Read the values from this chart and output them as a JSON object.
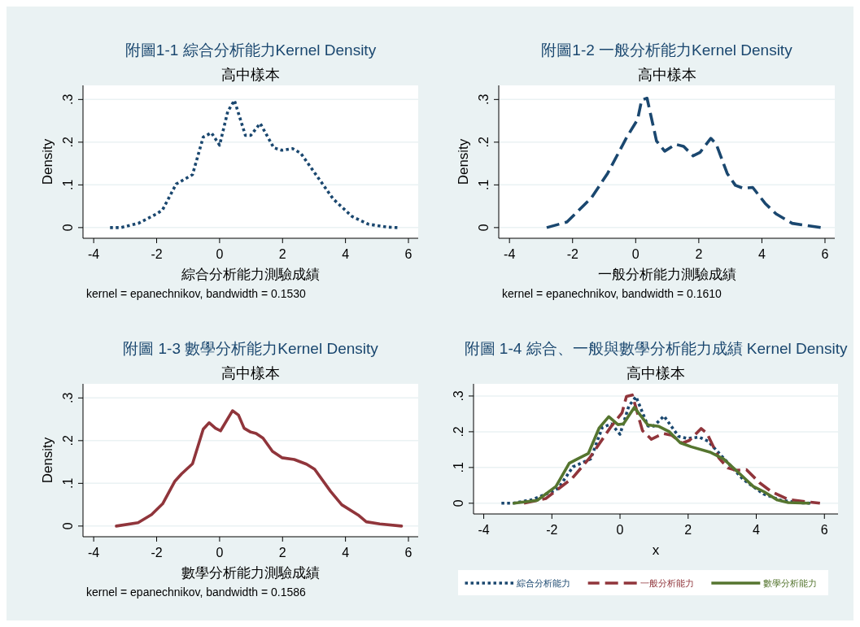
{
  "chart_data": [
    {
      "type": "line",
      "title": "附圖1-1 綜合分析能力Kernel Density",
      "subtitle": "高中樣本",
      "xlabel": "綜合分析能力測驗成績",
      "ylabel": "Density",
      "annotations": [
        "kernel = epanechnikov, bandwidth = 0.1530"
      ],
      "xlim": [
        -4.34,
        6.31
      ],
      "xticks": [
        -4,
        -2,
        0,
        2,
        4,
        6
      ],
      "ylim": [
        -0.025,
        0.333
      ],
      "yticks": [
        {
          "value": 0,
          "label": "0"
        },
        {
          "value": 0.1,
          "label": ".1"
        },
        {
          "value": 0.2,
          "label": ".2"
        },
        {
          "value": 0.3,
          "label": ".3"
        }
      ],
      "grid": "y",
      "series": [
        {
          "color": "#1a476f",
          "line_style": "dotted",
          "x": [
            -3.48,
            -3.14,
            -2.58,
            -1.98,
            -1.81,
            -1.38,
            -0.86,
            -0.52,
            -0.26,
            0,
            0.26,
            0.47,
            0.82,
            0.99,
            1.29,
            1.72,
            1.98,
            2.32,
            2.58,
            3.1,
            3.61,
            4.21,
            4.73,
            5.33,
            5.67
          ],
          "values": [
            0,
            0,
            0.01,
            0.033,
            0.042,
            0.102,
            0.124,
            0.212,
            0.222,
            0.193,
            0.272,
            0.298,
            0.216,
            0.216,
            0.244,
            0.187,
            0.181,
            0.185,
            0.174,
            0.12,
            0.067,
            0.026,
            0.008,
            0.001,
            0
          ]
        }
      ]
    },
    {
      "type": "line",
      "title": "附圖1-2 一般分析能力Kernel Density",
      "subtitle": "高中樣本",
      "xlabel": "一般分析能力測驗成績",
      "ylabel": "Density",
      "annotations": [
        "kernel = epanechnikov, bandwidth = 0.1610"
      ],
      "xlim": [
        -4.34,
        6.31
      ],
      "xticks": [
        -4,
        -2,
        0,
        2,
        4,
        6
      ],
      "ylim": [
        -0.025,
        0.333
      ],
      "yticks": [
        {
          "value": 0,
          "label": "0"
        },
        {
          "value": 0.1,
          "label": ".1"
        },
        {
          "value": 0.2,
          "label": ".2"
        },
        {
          "value": 0.3,
          "label": ".3"
        }
      ],
      "grid": "y",
      "series": [
        {
          "color": "#1a476f",
          "line_style": "dashed",
          "x": [
            -2.82,
            -2.18,
            -1.4,
            -0.89,
            -0.28,
            0.06,
            0.19,
            0.36,
            0.66,
            0.92,
            1.27,
            1.52,
            1.82,
            2.04,
            2.38,
            2.55,
            2.9,
            3.16,
            3.41,
            3.71,
            4.1,
            4.45,
            4.96,
            5.87
          ],
          "values": [
            0,
            0.013,
            0.07,
            0.127,
            0.212,
            0.253,
            0.299,
            0.303,
            0.203,
            0.179,
            0.195,
            0.19,
            0.168,
            0.176,
            0.209,
            0.196,
            0.127,
            0.099,
            0.092,
            0.094,
            0.057,
            0.032,
            0.01,
            0
          ]
        }
      ]
    },
    {
      "type": "line",
      "title": "附圖 1-3 數學分析能力Kernel Density",
      "subtitle": "高中樣本",
      "xlabel": "數學分析能力測驗成績",
      "ylabel": "Density",
      "annotations": [
        "kernel = epanechnikov, bandwidth = 0.1586"
      ],
      "xlim": [
        -4.34,
        6.31
      ],
      "xticks": [
        -4,
        -2,
        0,
        2,
        4,
        6
      ],
      "ylim": [
        -0.025,
        0.333
      ],
      "yticks": [
        {
          "value": 0,
          "label": "0"
        },
        {
          "value": 0.1,
          "label": ".1"
        },
        {
          "value": 0.2,
          "label": ".2"
        },
        {
          "value": 0.3,
          "label": ".3"
        }
      ],
      "grid": "y",
      "series": [
        {
          "color": "#90353b",
          "line_style": "solid",
          "x": [
            -3.28,
            -2.59,
            -2.16,
            -1.81,
            -1.42,
            -1.21,
            -0.86,
            -0.52,
            -0.33,
            -0.13,
            0.03,
            0.41,
            0.6,
            0.78,
            0.99,
            1.16,
            1.38,
            1.68,
            1.98,
            2.37,
            2.76,
            3.02,
            3.53,
            3.88,
            4.4,
            4.66,
            5.09,
            5.78
          ],
          "values": [
            0,
            0.008,
            0.027,
            0.052,
            0.105,
            0.122,
            0.146,
            0.227,
            0.242,
            0.229,
            0.223,
            0.27,
            0.26,
            0.229,
            0.22,
            0.217,
            0.206,
            0.175,
            0.16,
            0.156,
            0.145,
            0.133,
            0.081,
            0.05,
            0.026,
            0.01,
            0.005,
            0
          ]
        }
      ]
    },
    {
      "type": "line",
      "title": "附圖 1-4  綜合、一般與數學分析能力成績 Kernel Density",
      "subtitle": "高中樣本",
      "xlabel": "x",
      "xlim": [
        -4.3,
        6.4
      ],
      "xticks": [
        -4,
        -2,
        0,
        2,
        4,
        6
      ],
      "ylim": [
        -0.03,
        0.334
      ],
      "yticks": [
        {
          "value": 0,
          "label": "0"
        },
        {
          "value": 0.1,
          "label": ".1"
        },
        {
          "value": 0.2,
          "label": ".2"
        },
        {
          "value": 0.3,
          "label": ".3"
        }
      ],
      "grid": "y",
      "legend": "bottom",
      "series": [
        {
          "name": "綜合分析能力",
          "color": "#1a476f",
          "line_style": "dotted",
          "x": [
            -3.48,
            -3.14,
            -2.58,
            -1.98,
            -1.81,
            -1.38,
            -0.86,
            -0.52,
            -0.26,
            0,
            0.26,
            0.47,
            0.82,
            0.99,
            1.29,
            1.72,
            1.98,
            2.32,
            2.58,
            3.1,
            3.61,
            4.21,
            4.73,
            5.33,
            5.67
          ],
          "values": [
            0,
            0,
            0.01,
            0.033,
            0.042,
            0.102,
            0.124,
            0.212,
            0.222,
            0.193,
            0.272,
            0.298,
            0.216,
            0.216,
            0.244,
            0.187,
            0.181,
            0.185,
            0.174,
            0.12,
            0.067,
            0.026,
            0.008,
            0.001,
            0
          ]
        },
        {
          "name": "一般分析能力",
          "color": "#90353b",
          "line_style": "dashed",
          "x": [
            -2.82,
            -2.18,
            -1.4,
            -0.89,
            -0.28,
            0.06,
            0.19,
            0.36,
            0.66,
            0.92,
            1.27,
            1.52,
            1.82,
            2.04,
            2.38,
            2.55,
            2.9,
            3.16,
            3.41,
            3.71,
            4.1,
            4.45,
            4.96,
            5.87
          ],
          "values": [
            0,
            0.013,
            0.07,
            0.127,
            0.212,
            0.253,
            0.299,
            0.303,
            0.203,
            0.179,
            0.195,
            0.19,
            0.168,
            0.176,
            0.209,
            0.196,
            0.127,
            0.099,
            0.092,
            0.094,
            0.057,
            0.032,
            0.01,
            0
          ]
        },
        {
          "name": "數學分析能力",
          "color": "#55752f",
          "line_style": "solid",
          "x": [
            -3.11,
            -2.43,
            -1.88,
            -1.49,
            -1.25,
            -0.93,
            -0.61,
            -0.33,
            -0.06,
            0.1,
            0.42,
            0.82,
            1.14,
            1.45,
            1.77,
            2.09,
            2.64,
            3.04,
            3.52,
            3.91,
            4.23,
            4.62,
            4.94,
            5.54
          ],
          "values": [
            0,
            0.008,
            0.047,
            0.112,
            0.124,
            0.139,
            0.211,
            0.242,
            0.22,
            0.222,
            0.268,
            0.219,
            0.215,
            0.2,
            0.169,
            0.158,
            0.143,
            0.124,
            0.082,
            0.047,
            0.032,
            0.009,
            0.002,
            0
          ]
        }
      ]
    }
  ]
}
